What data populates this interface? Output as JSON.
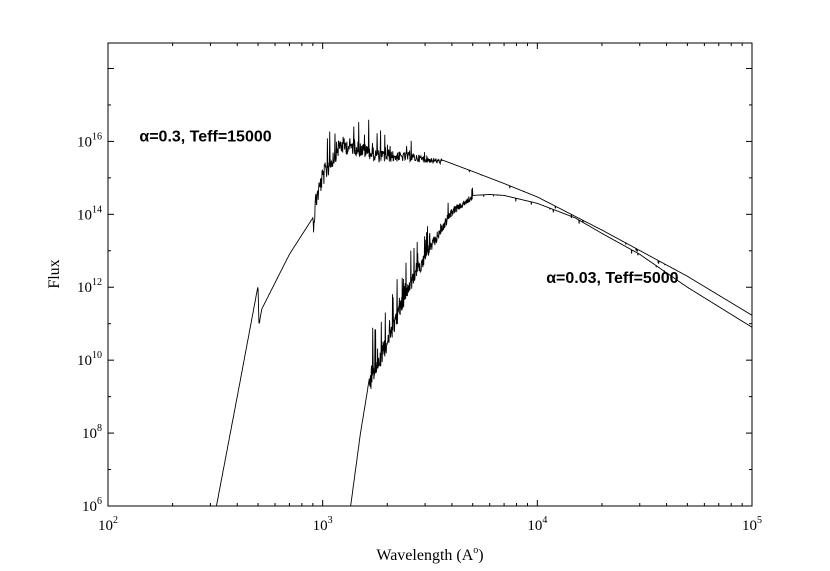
{
  "chart_data": {
    "type": "line",
    "title": "",
    "xlabel": "Wavelength (A",
    "xlabel_sup": "o",
    "xlabel_suffix": ")",
    "ylabel": "Flux",
    "x_scale": "log",
    "y_scale": "log",
    "xlim": [
      100,
      100000
    ],
    "ylim": [
      1000000,
      5000000000000000000
    ],
    "grid": false,
    "legend": "none",
    "x_ticks": [
      {
        "value": 100,
        "base": "10",
        "exp": "2"
      },
      {
        "value": 1000,
        "base": "10",
        "exp": "3"
      },
      {
        "value": 10000,
        "base": "10",
        "exp": "4"
      },
      {
        "value": 100000,
        "base": "10",
        "exp": "5"
      }
    ],
    "y_ticks": [
      {
        "value": 1000000,
        "base": "10",
        "exp": "6"
      },
      {
        "value": 100000000,
        "base": "10",
        "exp": "8"
      },
      {
        "value": 10000000000,
        "base": "10",
        "exp": "10"
      },
      {
        "value": 1000000000000,
        "base": "10",
        "exp": "12"
      },
      {
        "value": 100000000000000,
        "base": "10",
        "exp": "14"
      },
      {
        "value": 10000000000000000,
        "base": "10",
        "exp": "16"
      }
    ],
    "annotations": [
      {
        "text": "α=0.3, Teff=15000",
        "x": 140,
        "y": 10000000000000000
      },
      {
        "text": "α=0.03, Teff=5000",
        "x": 11000,
        "y": 1300000000000
      }
    ],
    "series": [
      {
        "color": "#000000",
        "x": [
          320,
          400,
          500,
          505,
          520,
          700,
          900,
          930,
          1000,
          1200,
          1400,
          1800,
          2500,
          3500,
          5000,
          7000,
          10000,
          20000,
          50000,
          100000
        ],
        "y": [
          1000000,
          1000000000,
          1100000000000,
          90000000000,
          250000000000,
          8000000000000,
          80000000000000,
          500000000000000,
          2000000000000000,
          14000000000000000,
          12000000000000000,
          6000000000000000,
          5000000000000000,
          3300000000000000,
          1500000000000000,
          700000000000000,
          300000000000000,
          37000000000000,
          2000000000000,
          170000000000
        ],
        "noisy_from": 900,
        "noisy_to": 3600
      },
      {
        "color": "#000000",
        "x": [
          1350,
          1500,
          1600,
          1700,
          1800,
          2000,
          2500,
          3000,
          4000,
          5000,
          6000,
          7000,
          10000,
          15000,
          20000,
          30000,
          50000,
          100000
        ],
        "y": [
          1000000,
          100000000,
          1000000000,
          10000000000,
          15000000000,
          60000000000,
          1500000000000,
          10000000000000,
          150000000000000,
          330000000000000,
          350000000000000,
          330000000000000,
          200000000000000,
          80000000000000,
          30000000000000,
          8000000000000,
          1000000000000,
          80000000000
        ],
        "noisy_from": 1650,
        "noisy_to": 5000
      }
    ]
  }
}
